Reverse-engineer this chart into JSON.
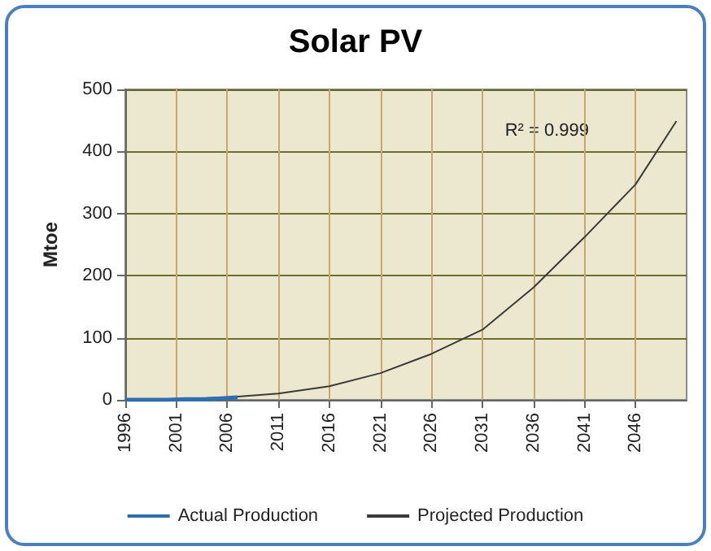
{
  "chart_data": {
    "type": "line",
    "title": "Solar PV",
    "ylabel": "Mtoe",
    "series": [
      {
        "name": "Actual Production",
        "color": "#2e6fb0",
        "x": [
          1996,
          1998,
          2000,
          2002,
          2004,
          2006,
          2007
        ],
        "values": [
          0,
          0,
          0,
          1,
          1,
          3,
          4
        ]
      },
      {
        "name": "Projected Production",
        "color": "#3a3a3a",
        "x": [
          1996,
          2001,
          2006,
          2011,
          2016,
          2021,
          2026,
          2031,
          2036,
          2041,
          2046,
          2050
        ],
        "values": [
          0,
          1,
          4,
          10,
          22,
          43,
          74,
          113,
          181,
          262,
          347,
          449
        ]
      }
    ],
    "annotations": [
      "R² = 0.999"
    ],
    "xlim": [
      1996,
      2051
    ],
    "xticks": [
      1996,
      2001,
      2006,
      2011,
      2016,
      2021,
      2026,
      2031,
      2036,
      2041,
      2046
    ],
    "ylim": [
      0,
      500
    ],
    "yticks": [
      0,
      100,
      200,
      300,
      400,
      500
    ],
    "grid": true,
    "legend": "bottom",
    "marker": "none",
    "line_style": "solid"
  }
}
